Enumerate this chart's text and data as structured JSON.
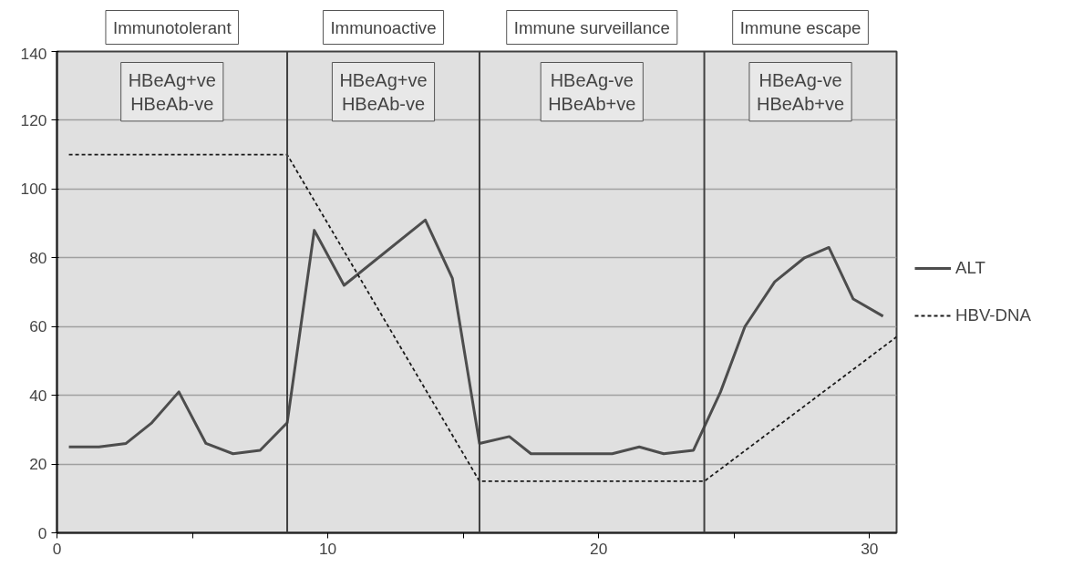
{
  "chart_data": {
    "type": "line",
    "x": [
      0.44,
      1.55,
      2.55,
      3.5,
      4.5,
      5.5,
      6.5,
      7.5,
      8.5,
      9.5,
      10.6,
      13.6,
      14.6,
      15.6,
      16.7,
      17.5,
      20.5,
      21.5,
      22.4,
      23.5,
      24.5,
      25.4,
      26.5,
      27.6,
      28.5,
      29.4,
      30.5
    ],
    "series": [
      {
        "name": "ALT",
        "color": "#4d4d4d",
        "line_style": "solid",
        "values": [
          25,
          25,
          26,
          32,
          41,
          26,
          23,
          24,
          32,
          88,
          72,
          91,
          74,
          26,
          28,
          23,
          23,
          25,
          23,
          24,
          41,
          60,
          73,
          80,
          83,
          68,
          63
        ]
      },
      {
        "name": "HBV-DNA",
        "color": "#1a1a1a",
        "line_style": "dashed",
        "x": [
          0.44,
          8.5,
          15.6,
          23.9,
          31
        ],
        "values": [
          110,
          110,
          15,
          15,
          57
        ]
      }
    ],
    "xlim": [
      0,
      31
    ],
    "ylim": [
      0,
      140
    ],
    "xticks": [
      0,
      {
        "value": 5,
        "label": null
      },
      10,
      {
        "value": 15,
        "label": null
      },
      20,
      {
        "value": 25,
        "label": null
      },
      30
    ],
    "yticks": [
      0,
      20,
      40,
      60,
      80,
      100,
      120,
      140
    ],
    "grid": "y",
    "legend": "right",
    "ref_lines": [
      {
        "axis": "x",
        "value": 8.5,
        "color": "#404040"
      },
      {
        "axis": "x",
        "value": 15.6,
        "color": "#404040"
      },
      {
        "axis": "x",
        "value": 23.9,
        "color": "#404040"
      }
    ],
    "annotations": [
      "Immunotolerant",
      "Immunoactive",
      "Immune surveillance",
      "Immune escape",
      "HBeAg+ve\nHBeAb-ve",
      "HBeAg+ve\nHBeAb-ve",
      "HBeAg-ve\nHBeAb+ve",
      "HBeAg-ve\nHBeAb+ve"
    ]
  }
}
